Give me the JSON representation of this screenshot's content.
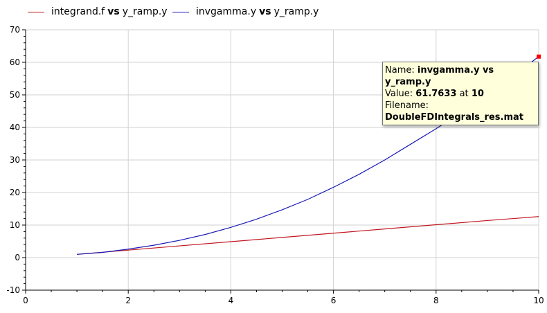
{
  "legend": [
    {
      "var": "integrand.f",
      "vs": "vs",
      "xvar": "y_ramp.y",
      "color": "#c0161f"
    },
    {
      "var": "invgamma.y",
      "vs": "vs",
      "xvar": "y_ramp.y",
      "color": "#1a1ab5"
    }
  ],
  "tooltip": {
    "name_label": "Name:",
    "name_value": "invgamma.y vs y_ramp.y",
    "value_label": "Value:",
    "value_value": "61.7633",
    "at_label": "at",
    "at_value": "10",
    "filename_label": "Filename:",
    "filename_value": "DoubleFDIntegrals_res.mat"
  },
  "chart_data": {
    "type": "line",
    "title": "",
    "xlabel": "",
    "ylabel": "",
    "xlim": [
      0,
      10
    ],
    "ylim": [
      -10,
      70
    ],
    "xticks": [
      0,
      2,
      4,
      6,
      8,
      10
    ],
    "yticks": [
      -10,
      0,
      10,
      20,
      30,
      40,
      50,
      60,
      70
    ],
    "grid": true,
    "legend_position": "top-left",
    "series": [
      {
        "name": "integrand.f vs y_ramp.y",
        "color": "#c0161f",
        "x": [
          1,
          2,
          3,
          4,
          5,
          6,
          7,
          8,
          9,
          10
        ],
        "y": [
          1.0,
          2.3,
          3.6,
          4.9,
          6.2,
          7.5,
          8.8,
          10.1,
          11.4,
          12.6
        ]
      },
      {
        "name": "invgamma.y vs y_ramp.y",
        "color": "#1a1ab5",
        "x": [
          1,
          1.5,
          2,
          2.5,
          3,
          3.5,
          4,
          4.5,
          5,
          5.5,
          6,
          6.5,
          7,
          7.5,
          8,
          8.5,
          9,
          9.5,
          10
        ],
        "y": [
          1.0,
          1.6,
          2.6,
          3.8,
          5.3,
          7.1,
          9.3,
          11.8,
          14.7,
          17.9,
          21.6,
          25.6,
          30.0,
          34.8,
          39.6,
          44.7,
          50.1,
          55.8,
          61.76
        ]
      }
    ]
  }
}
